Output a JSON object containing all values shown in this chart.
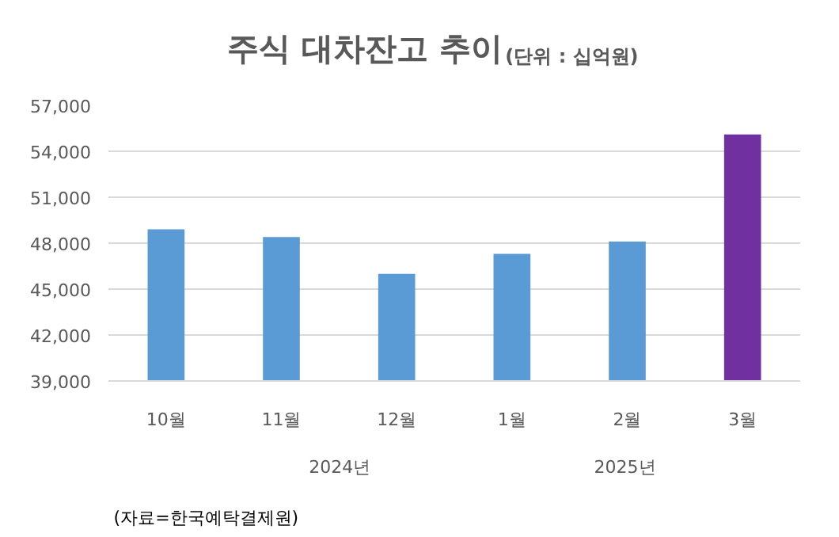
{
  "chart_data": {
    "type": "bar",
    "title": "주식 대차잔고 추이",
    "subtitle": "(단위 : 십억원)",
    "categories": [
      "10월",
      "11월",
      "12월",
      "1월",
      "2월",
      "3월"
    ],
    "values": [
      48900,
      48400,
      46000,
      47300,
      48100,
      55100
    ],
    "colors": [
      "#5b9bd5",
      "#5b9bd5",
      "#5b9bd5",
      "#5b9bd5",
      "#5b9bd5",
      "#7030a0"
    ],
    "ylim": [
      39000,
      57000
    ],
    "yticks": [
      {
        "value": 39000,
        "label": "39,000"
      },
      {
        "value": 42000,
        "label": "42,000"
      },
      {
        "value": 45000,
        "label": "45,000"
      },
      {
        "value": 48000,
        "label": "48,000"
      },
      {
        "value": 51000,
        "label": "51,000"
      },
      {
        "value": 54000,
        "label": "54,000"
      },
      {
        "value": 57000,
        "label": "57,000"
      }
    ],
    "grid": "y",
    "annotations": [
      "2024년",
      "2025년",
      "(자료=한국예탁결제원)"
    ]
  }
}
